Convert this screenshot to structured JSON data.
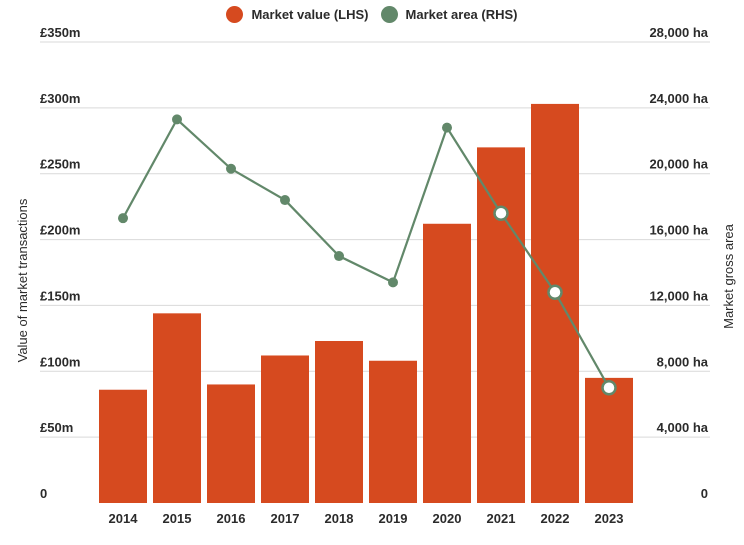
{
  "legend": {
    "value_label": "Market value (LHS)",
    "area_label": "Market area (RHS)"
  },
  "colors": {
    "bar": "#d64a1f",
    "line": "#62886a",
    "grid": "#d9d9d9",
    "text": "#2b2b2b"
  },
  "chart_data": {
    "type": "bar",
    "categories": [
      "2014",
      "2015",
      "2016",
      "2017",
      "2018",
      "2019",
      "2020",
      "2021",
      "2022",
      "2023"
    ],
    "series": [
      {
        "name": "Market value (LHS)",
        "type": "bar",
        "axis": "left",
        "values": [
          86,
          144,
          90,
          112,
          123,
          108,
          212,
          270,
          303,
          95
        ]
      },
      {
        "name": "Market area (RHS)",
        "type": "line",
        "axis": "right",
        "values": [
          17300,
          23300,
          20300,
          18400,
          15000,
          13400,
          22800,
          17600,
          12800,
          7000
        ],
        "highlighted_points": [
          "2021",
          "2022",
          "2023"
        ]
      }
    ],
    "ylabel_left": "Value of market transactions",
    "ylabel_right": "Market gross area",
    "ylim_left": [
      0,
      350
    ],
    "ylim_right": [
      0,
      28000
    ],
    "yticks_left": [
      "0",
      "£50m",
      "£100m",
      "£150m",
      "£200m",
      "£250m",
      "£300m",
      "£350m"
    ],
    "yticks_right": [
      "0",
      "4,000 ha",
      "8,000 ha",
      "12,000 ha",
      "16,000 ha",
      "20,000 ha",
      "24,000 ha",
      "28,000 ha"
    ],
    "grid": true,
    "legend_position": "top"
  }
}
